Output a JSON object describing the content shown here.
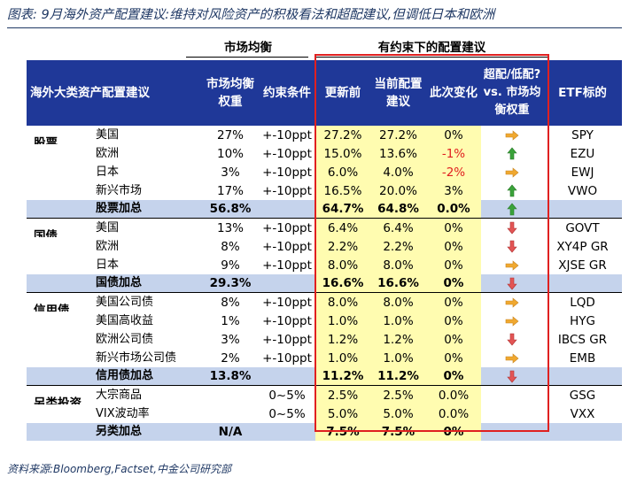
{
  "title": "图表: 9月海外资产配置建议:维持对风险资产的积极看法和超配建议,但调低日本和欧洲",
  "group_market": "市场均衡",
  "group_constraint": "有约束下的配置建议",
  "headers": {
    "category": "海外大类资产配置建议",
    "market_weight": "市场均衡权重",
    "constraint": "约束条件",
    "before": "更新前",
    "current": "当前配置建议",
    "change": "此次变化",
    "overweight": "超配/低配? vs. 市场均衡权重",
    "etf": "ETF标的"
  },
  "colors": {
    "header_bg": "#1f3898",
    "subtotal_bg": "#c5d3ec",
    "highlight": "#fffcb0",
    "red": "#e02020",
    "green": "#3aa33a",
    "orange": "#f0a830",
    "pink": "#e35555"
  },
  "rows": [
    {
      "type": "item",
      "cat": "股票",
      "name": "美国",
      "mw": "27%",
      "con": "+-10ppt",
      "before": "27.2%",
      "cur": "27.2%",
      "chg": "0%",
      "chg_red": false,
      "arrow": "right-orange-arrow",
      "etf": "SPY"
    },
    {
      "type": "item",
      "cat": "",
      "name": "欧洲",
      "mw": "10%",
      "con": "+-10ppt",
      "before": "15.0%",
      "cur": "13.6%",
      "chg": "-1%",
      "chg_red": true,
      "arrow": "up-green-arrow",
      "etf": "EZU"
    },
    {
      "type": "item",
      "cat": "",
      "name": "日本",
      "mw": "3%",
      "con": "+-10ppt",
      "before": "6.0%",
      "cur": "4.0%",
      "chg": "-2%",
      "chg_red": true,
      "arrow": "right-orange-arrow",
      "etf": "EWJ"
    },
    {
      "type": "item",
      "cat": "",
      "name": "新兴市场",
      "mw": "17%",
      "con": "+-10ppt",
      "before": "16.5%",
      "cur": "20.0%",
      "chg": "3%",
      "chg_red": false,
      "arrow": "up-green-arrow",
      "etf": "VWO"
    },
    {
      "type": "sub",
      "name": "股票加总",
      "mw": "56.8%",
      "con": "",
      "before": "64.7%",
      "cur": "64.8%",
      "chg": "0.0%",
      "chg_red": false,
      "arrow": "up-green-arrow",
      "etf": ""
    },
    {
      "type": "item",
      "cat": "国债",
      "name": "美国",
      "mw": "13%",
      "con": "+-10ppt",
      "before": "6.4%",
      "cur": "6.4%",
      "chg": "0%",
      "chg_red": false,
      "arrow": "down-pink-arrow",
      "etf": "GOVT"
    },
    {
      "type": "item",
      "cat": "",
      "name": "欧洲",
      "mw": "8%",
      "con": "+-10ppt",
      "before": "2.2%",
      "cur": "2.2%",
      "chg": "0%",
      "chg_red": false,
      "arrow": "down-pink-arrow",
      "etf": "XY4P GR"
    },
    {
      "type": "item",
      "cat": "",
      "name": "日本",
      "mw": "9%",
      "con": "+-10ppt",
      "before": "8.0%",
      "cur": "8.0%",
      "chg": "0%",
      "chg_red": false,
      "arrow": "right-orange-arrow",
      "etf": "XJSE GR"
    },
    {
      "type": "sub",
      "name": "国债加总",
      "mw": "29.3%",
      "con": "",
      "before": "16.6%",
      "cur": "16.6%",
      "chg": "0%",
      "chg_red": false,
      "arrow": "down-pink-arrow",
      "etf": ""
    },
    {
      "type": "item",
      "cat": "信用债",
      "name": "美国公司债",
      "mw": "8%",
      "con": "+-10ppt",
      "before": "8.0%",
      "cur": "8.0%",
      "chg": "0%",
      "chg_red": false,
      "arrow": "right-orange-arrow",
      "etf": "LQD"
    },
    {
      "type": "item",
      "cat": "",
      "name": "美国高收益",
      "mw": "1%",
      "con": "+-10ppt",
      "before": "1.0%",
      "cur": "1.0%",
      "chg": "0%",
      "chg_red": false,
      "arrow": "right-orange-arrow",
      "etf": "HYG"
    },
    {
      "type": "item",
      "cat": "",
      "name": "欧洲公司债",
      "mw": "3%",
      "con": "+-10ppt",
      "before": "1.2%",
      "cur": "1.2%",
      "chg": "0%",
      "chg_red": false,
      "arrow": "down-pink-arrow",
      "etf": "IBCS GR"
    },
    {
      "type": "item",
      "cat": "",
      "name": "新兴市场公司债",
      "mw": "2%",
      "con": "+-10ppt",
      "before": "1.0%",
      "cur": "1.0%",
      "chg": "0%",
      "chg_red": false,
      "arrow": "right-orange-arrow",
      "etf": "EMB"
    },
    {
      "type": "sub",
      "name": "信用债加总",
      "mw": "13.8%",
      "con": "",
      "before": "11.2%",
      "cur": "11.2%",
      "chg": "0%",
      "chg_red": false,
      "arrow": "down-pink-arrow",
      "etf": ""
    },
    {
      "type": "item",
      "cat": "另类投资",
      "name": "大宗商品",
      "mw": "",
      "con": "0~5%",
      "before": "2.5%",
      "cur": "2.5%",
      "chg": "0.0%",
      "chg_red": false,
      "arrow": "",
      "etf": "GSG"
    },
    {
      "type": "item",
      "cat": "",
      "name": "VIX波动率",
      "mw": "",
      "con": "0~5%",
      "before": "5.0%",
      "cur": "5.0%",
      "chg": "0.0%",
      "chg_red": false,
      "arrow": "",
      "etf": "VXX"
    },
    {
      "type": "sub",
      "name": "另类加总",
      "mw": "N/A",
      "con": "",
      "before": "7.5%",
      "cur": "7.5%",
      "chg": "0%",
      "chg_red": false,
      "arrow": "",
      "etf": ""
    }
  ],
  "source": "资料来源:Bloomberg,Factset,中金公司研究部"
}
